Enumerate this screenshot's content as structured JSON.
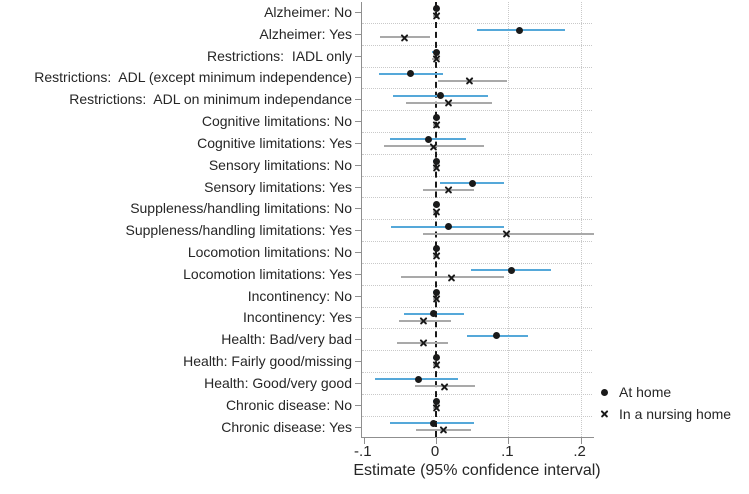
{
  "chart_data": {
    "type": "scatter",
    "subtype": "coefficient-plot-with-95ci",
    "title": "",
    "xlabel": "Estimate (95% confidence interval)",
    "categories": [
      "Alzheimer: No",
      "Alzheimer: Yes",
      "Restrictions:  IADL only",
      "Restrictions:  ADL (except minimum independence)",
      "Restrictions:  ADL on minimum independance",
      "Cognitive limitations: No",
      "Cognitive limitations: Yes",
      "Sensory limitations: No",
      "Sensory limitations: Yes",
      "Suppleness/handling limitations: No",
      "Suppleness/handling limitations: Yes",
      "Locomotion limitations: No",
      "Locomotion limitations: Yes",
      "Incontinency: No",
      "Incontinency: Yes",
      "Health: Bad/very bad",
      "Health: Fairly good/missing",
      "Health: Good/very good",
      "Chronic disease: No",
      "Chronic disease: Yes"
    ],
    "series": [
      {
        "name": "At home",
        "marker": "circle",
        "marker_color": "#1a1a1a",
        "ci_color": "#55a8d9",
        "estimates": [
          0,
          0.116,
          0,
          -0.035,
          0.006,
          0,
          -0.011,
          0,
          0.05,
          0,
          0.017,
          0,
          0.104,
          0,
          -0.003,
          0.084,
          0,
          -0.025,
          0,
          -0.004
        ],
        "ci_low": [
          -0.004,
          0.057,
          -0.005,
          -0.079,
          -0.059,
          -0.004,
          -0.064,
          -0.004,
          0.006,
          -0.004,
          -0.062,
          -0.004,
          0.048,
          -0.004,
          -0.044,
          0.043,
          -0.004,
          -0.084,
          -0.004,
          -0.064
        ],
        "ci_high": [
          0.004,
          0.178,
          0.005,
          0.009,
          0.072,
          0.004,
          0.041,
          0.004,
          0.094,
          0.004,
          0.094,
          0.004,
          0.159,
          0.004,
          0.039,
          0.127,
          0.004,
          0.03,
          0.004,
          0.053
        ]
      },
      {
        "name": "In a nursing home",
        "marker": "x",
        "marker_color": "#1a1a1a",
        "ci_color": "#a9a9a9",
        "estimates": [
          0,
          -0.044,
          0,
          0.046,
          0.017,
          0,
          -0.003,
          0,
          0.017,
          0,
          0.098,
          0,
          0.022,
          0,
          -0.017,
          -0.018,
          0,
          0.011,
          0,
          0.01
        ],
        "ci_low": [
          -0.004,
          -0.077,
          -0.005,
          0.003,
          -0.041,
          -0.004,
          -0.072,
          -0.004,
          -0.018,
          -0.004,
          -0.018,
          -0.004,
          -0.048,
          -0.004,
          -0.051,
          -0.054,
          -0.004,
          -0.029,
          -0.004,
          -0.028
        ],
        "ci_high": [
          0.004,
          -0.009,
          0.005,
          0.098,
          0.077,
          0.004,
          0.066,
          0.004,
          0.053,
          0.004,
          0.219,
          0.004,
          0.094,
          0.004,
          0.021,
          0.017,
          0.004,
          0.054,
          0.004,
          0.048
        ]
      }
    ],
    "xticks": [
      -0.1,
      0,
      0.1,
      0.2
    ],
    "xtick_labels": [
      "-.1",
      "0",
      ".1",
      ".2"
    ],
    "xlim": [
      -0.1025,
      0.2185
    ],
    "vertical_gridlines": [
      0.1,
      0.2
    ],
    "zero_line": 0,
    "grid": "dotted-row-separators",
    "legend_position": "right-bottom",
    "colors": {
      "at_home_ci": "#55a8d9",
      "nursing_home_ci": "#a9a9a9",
      "marker": "#1a1a1a",
      "gridline": "#c9c9c9",
      "axis": "#8f8f8f",
      "text": "#262626"
    }
  }
}
